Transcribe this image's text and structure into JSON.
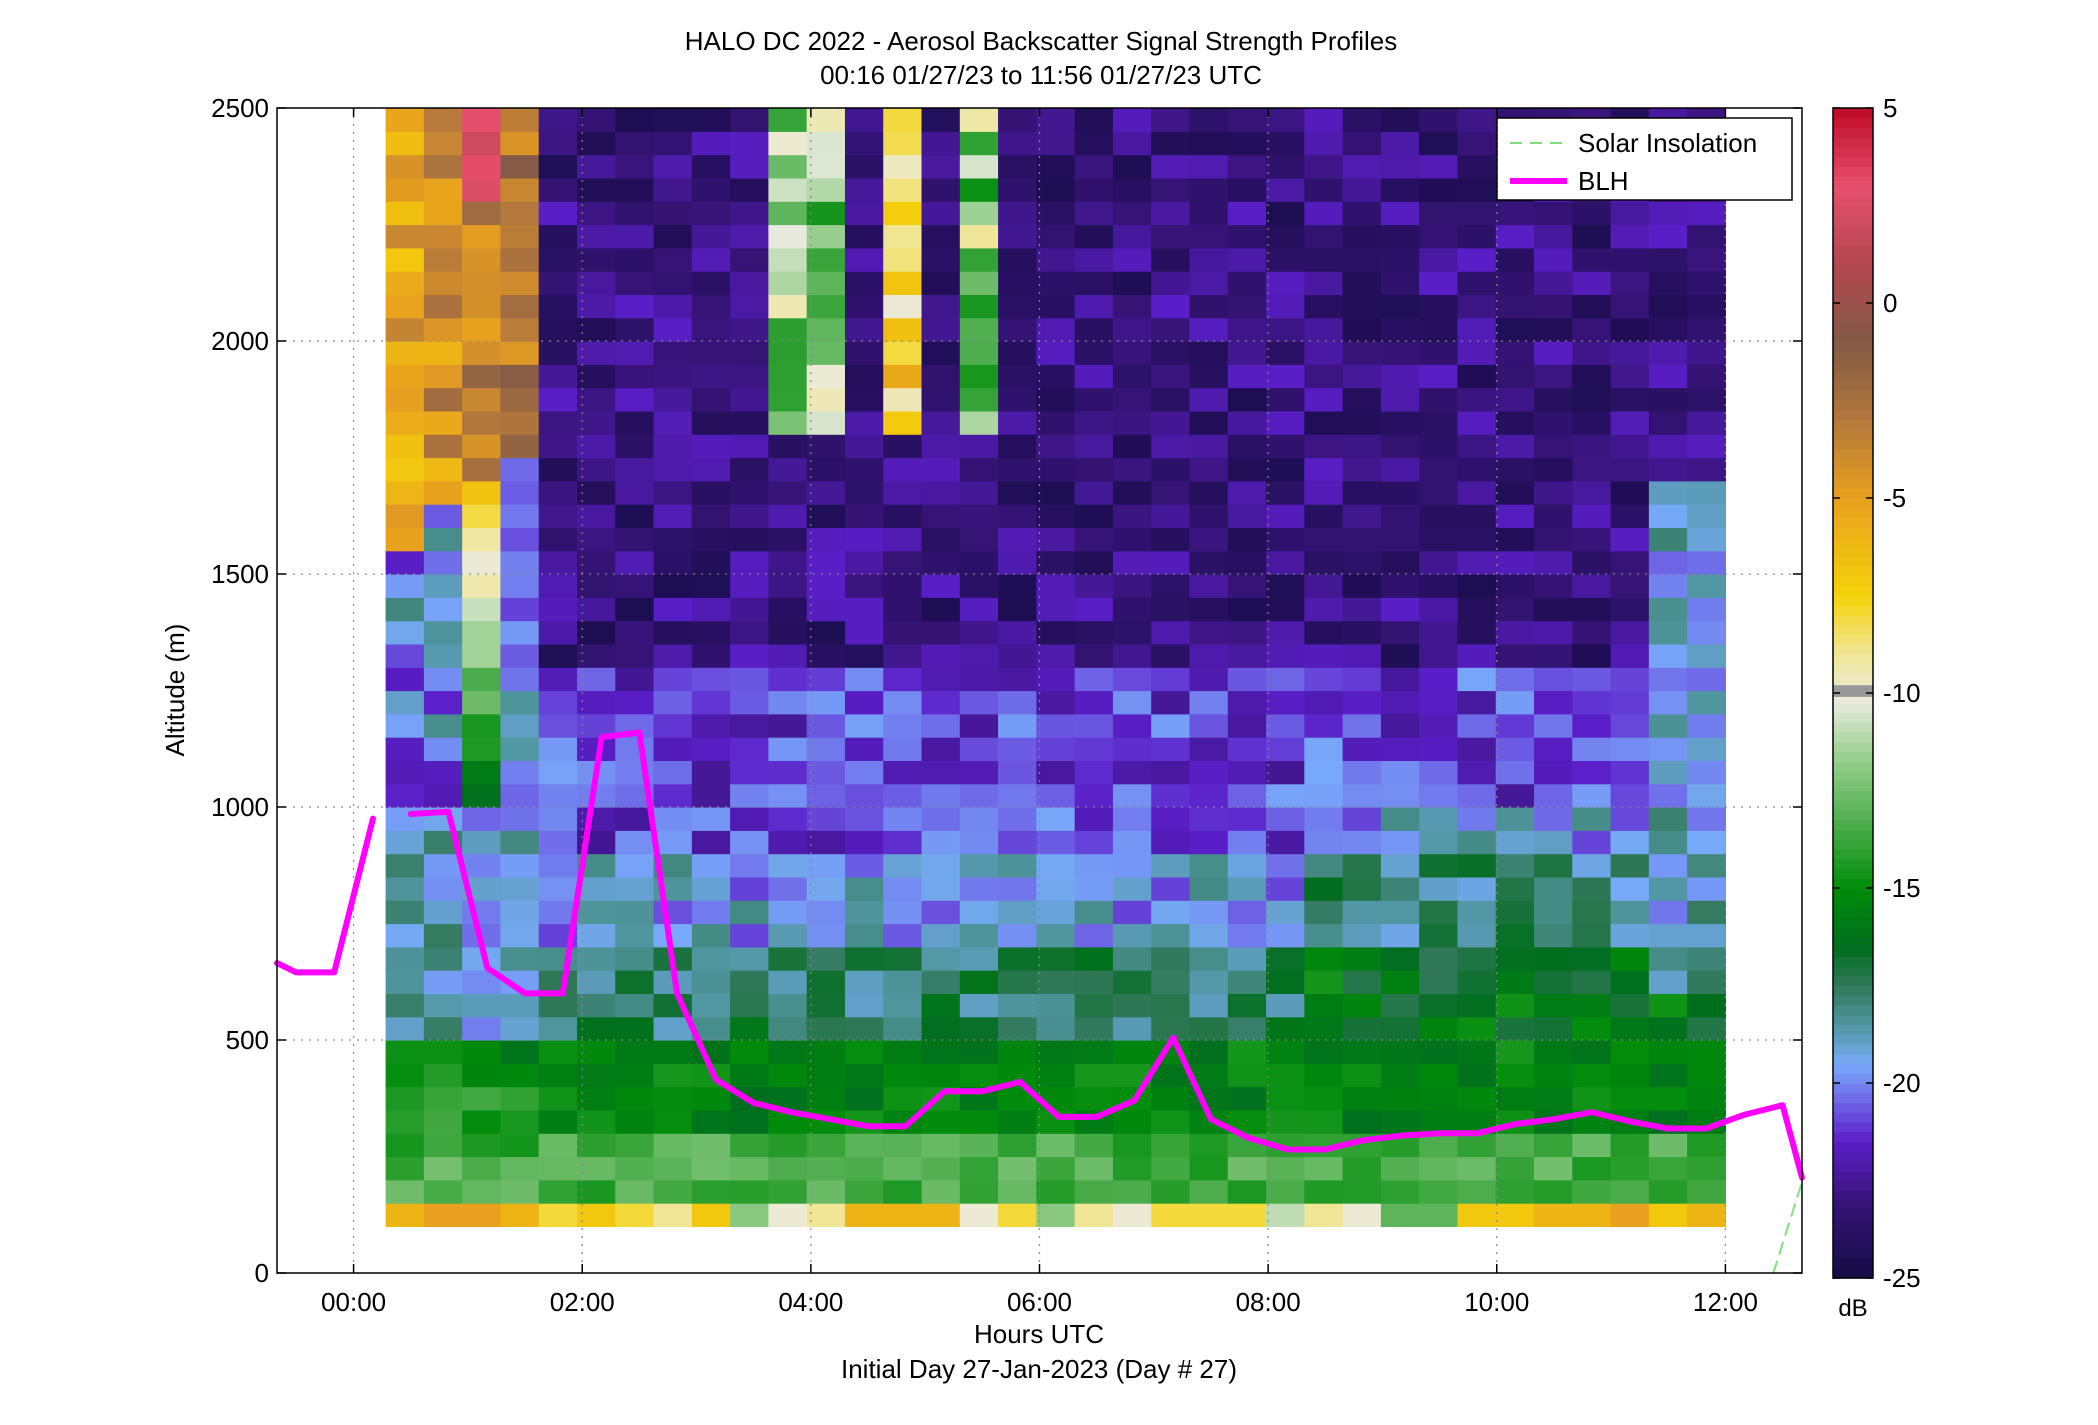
{
  "chart_data": {
    "type": "heatmap",
    "title": "HALO DC 2022 - Aerosol Backscatter Signal Strength Profiles",
    "subtitle": "00:16 01/27/23 to 11:56 01/27/23  UTC",
    "xlabel": "Hours UTC",
    "xlabel2": "Initial Day 27-Jan-2023 (Day # 27)",
    "ylabel": "Altitude (m)",
    "xlim": [
      -0.67,
      12.67
    ],
    "ylim": [
      0,
      2500
    ],
    "x_ticks": [
      0,
      2,
      4,
      6,
      8,
      10,
      12
    ],
    "x_tick_labels": [
      "00:00",
      "02:00",
      "04:00",
      "06:00",
      "08:00",
      "10:00",
      "12:00"
    ],
    "y_ticks": [
      0,
      500,
      1000,
      1500,
      2000,
      2500
    ],
    "y_tick_labels": [
      "0",
      "500",
      "1000",
      "1500",
      "2000",
      "2500"
    ],
    "grid": true,
    "legend_position": "top-right",
    "colorbar": {
      "label": "dB",
      "min": -25,
      "max": 5,
      "ticks": [
        5,
        0,
        -5,
        -10,
        -15,
        -20,
        -25
      ],
      "tick_labels": [
        "5",
        "0",
        "-5",
        "-10",
        "-15",
        "-20",
        "-25"
      ]
    },
    "heatmap": {
      "x_start": 0.28,
      "x_end": 12.0,
      "n_columns": 35,
      "y_start": 100,
      "y_end": 2500,
      "bin_height": 50
    },
    "series": [
      {
        "name": "BLH",
        "color": "#ff00ff",
        "segments": [
          {
            "x": [
              -0.67,
              -0.5,
              -0.17,
              0.17
            ],
            "y": [
              665,
              645,
              645,
              975
            ]
          },
          {
            "x": [
              0.5,
              0.83,
              1.17,
              1.5,
              1.83,
              2.17,
              2.5,
              2.83,
              3.17,
              3.5,
              3.83,
              4.17,
              4.5,
              4.83,
              5.17,
              5.5,
              5.83,
              6.17,
              6.5,
              6.83,
              7.17,
              7.5,
              7.83,
              8.17,
              8.5,
              8.83,
              9.17,
              9.5,
              9.83,
              10.17,
              10.5,
              10.83,
              11.17,
              11.5,
              11.83,
              12.17,
              12.5,
              12.67
            ],
            "y": [
              985,
              990,
              655,
              600,
              600,
              1150,
              1160,
              600,
              415,
              365,
              345,
              330,
              315,
              315,
              390,
              390,
              410,
              335,
              335,
              370,
              505,
              330,
              290,
              265,
              265,
              285,
              295,
              300,
              300,
              320,
              330,
              345,
              325,
              310,
              310,
              340,
              360,
              205
            ]
          }
        ]
      },
      {
        "name": "Solar Insolation",
        "color": "#7fe07f",
        "segments": [
          {
            "x": [
              12.42,
              12.67
            ],
            "y": [
              0,
              195
            ]
          }
        ]
      }
    ],
    "bottom_row_db": [
      -6,
      -5,
      -5,
      -6,
      -8,
      -7,
      -8,
      -9,
      -7,
      -12,
      -10,
      -9,
      -6,
      -6,
      -6,
      -10,
      -8,
      -12,
      -9,
      -10,
      -8,
      -8,
      -8,
      -11,
      -9,
      -10,
      -13,
      -13,
      -7,
      -7,
      -6,
      -6,
      -5,
      -7,
      -6
    ]
  },
  "legend": {
    "solar_label": "Solar Insolation",
    "blh_label": "BLH"
  },
  "colors": {
    "blh": "#ff00ff",
    "solar": "#7fe07f",
    "grid": "#888888",
    "axes": "#000000"
  }
}
